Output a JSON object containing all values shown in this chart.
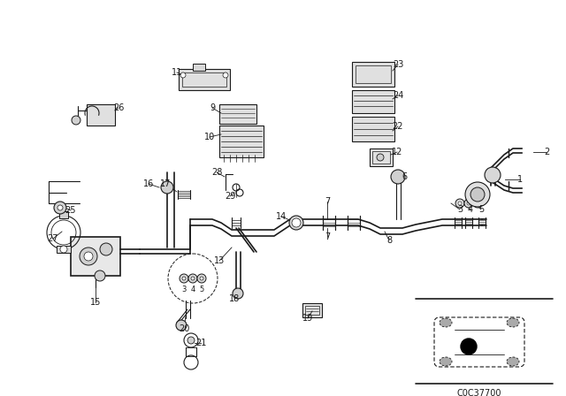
{
  "bg_color": "#ffffff",
  "line_color": "#1a1a1a",
  "code": "C0C37700",
  "fig_width": 6.4,
  "fig_height": 4.48,
  "dpi": 100,
  "gray": "#888888",
  "lightgray": "#cccccc"
}
